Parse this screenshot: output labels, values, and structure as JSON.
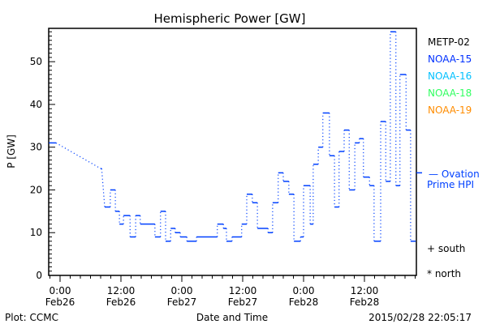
{
  "chart_data": {
    "type": "line",
    "title": "Hemispheric Power [GW]",
    "xlabel": "Date and Time",
    "ylabel": "P [GW]",
    "x_units": "hours since 2015-02-26 0:00",
    "xlim": [
      -2.2,
      70.2
    ],
    "ylim": [
      0,
      57.8
    ],
    "yticks": [
      0,
      10,
      20,
      30,
      40,
      50
    ],
    "xticks": [
      {
        "h": 0,
        "time": "0:00",
        "date": "Feb26"
      },
      {
        "h": 12,
        "time": "12:00",
        "date": "Feb26"
      },
      {
        "h": 24,
        "time": "0:00",
        "date": "Feb27"
      },
      {
        "h": 36,
        "time": "12:00",
        "date": "Feb27"
      },
      {
        "h": 48,
        "time": "0:00",
        "date": "Feb28"
      },
      {
        "h": 60,
        "time": "12:00",
        "date": "Feb28"
      }
    ],
    "series": [
      {
        "name": "NOAA-15",
        "color": "#0040ff",
        "segments": [
          [
            -2.2,
            -0.8,
            31
          ],
          [
            8.0,
            8.2,
            25
          ],
          [
            8.8,
            9.9,
            16
          ],
          [
            9.9,
            10.9,
            20
          ],
          [
            10.9,
            11.7,
            15
          ],
          [
            11.7,
            12.5,
            12
          ],
          [
            12.5,
            13.8,
            14
          ],
          [
            13.8,
            14.9,
            9
          ],
          [
            14.9,
            15.8,
            14
          ],
          [
            15.8,
            18.7,
            12
          ],
          [
            18.7,
            19.8,
            9
          ],
          [
            19.8,
            20.8,
            15
          ],
          [
            20.8,
            21.8,
            8
          ],
          [
            21.8,
            22.7,
            11
          ],
          [
            22.7,
            23.7,
            10
          ],
          [
            23.7,
            25.0,
            9
          ],
          [
            25.0,
            26.9,
            8
          ],
          [
            26.9,
            31.0,
            9
          ],
          [
            31.0,
            32.2,
            12
          ],
          [
            32.2,
            32.8,
            11
          ],
          [
            32.8,
            33.9,
            8
          ],
          [
            33.9,
            35.8,
            9
          ],
          [
            35.8,
            36.8,
            12
          ],
          [
            36.8,
            37.9,
            19
          ],
          [
            37.9,
            38.9,
            17
          ],
          [
            38.9,
            41.0,
            11
          ],
          [
            41.0,
            41.9,
            10
          ],
          [
            41.9,
            43.0,
            17
          ],
          [
            43.0,
            44.0,
            24
          ],
          [
            44.0,
            45.1,
            22
          ],
          [
            45.1,
            46.1,
            19
          ],
          [
            46.1,
            47.4,
            8
          ],
          [
            47.4,
            48.0,
            9
          ],
          [
            48.0,
            49.3,
            21
          ],
          [
            49.3,
            49.9,
            12
          ],
          [
            49.9,
            50.9,
            26
          ],
          [
            50.9,
            51.8,
            30
          ],
          [
            51.8,
            53.1,
            38
          ],
          [
            53.1,
            54.1,
            28
          ],
          [
            54.1,
            55.0,
            16
          ],
          [
            55.0,
            56.0,
            29
          ],
          [
            56.0,
            57.0,
            34
          ],
          [
            57.0,
            58.1,
            20
          ],
          [
            58.1,
            59.0,
            31
          ],
          [
            59.0,
            59.8,
            32
          ],
          [
            59.8,
            61.0,
            23
          ],
          [
            61.0,
            61.9,
            21
          ],
          [
            61.9,
            63.2,
            8
          ],
          [
            63.2,
            64.2,
            36
          ],
          [
            64.2,
            65.1,
            22
          ],
          [
            65.1,
            66.2,
            57
          ],
          [
            66.2,
            67.0,
            21
          ],
          [
            67.0,
            68.2,
            47
          ],
          [
            68.2,
            69.1,
            34
          ],
          [
            69.1,
            70.1,
            8
          ]
        ]
      }
    ],
    "ovation_hpi": 24,
    "legend": [
      {
        "label": "METP-02",
        "color": "#000000"
      },
      {
        "label": "NOAA-15",
        "color": "#0030ff"
      },
      {
        "label": "NOAA-16",
        "color": "#00c0ff"
      },
      {
        "label": "NOAA-18",
        "color": "#30ff60"
      },
      {
        "label": "NOAA-19",
        "color": "#ff8c00"
      }
    ],
    "ovation_label_1": "— Ovation",
    "ovation_label_2": "Prime HPI",
    "south_label": "+ south",
    "north_label": "* north"
  },
  "footer": {
    "plot_credit": "Plot: CCMC",
    "timestamp": "2015/02/28 22:05:17"
  }
}
